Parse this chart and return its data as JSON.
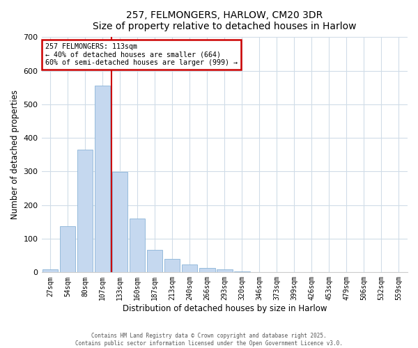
{
  "title": "257, FELMONGERS, HARLOW, CM20 3DR",
  "subtitle": "Size of property relative to detached houses in Harlow",
  "xlabel": "Distribution of detached houses by size in Harlow",
  "ylabel": "Number of detached properties",
  "bar_labels": [
    "27sqm",
    "54sqm",
    "80sqm",
    "107sqm",
    "133sqm",
    "160sqm",
    "187sqm",
    "213sqm",
    "240sqm",
    "266sqm",
    "293sqm",
    "320sqm",
    "346sqm",
    "373sqm",
    "399sqm",
    "426sqm",
    "453sqm",
    "479sqm",
    "506sqm",
    "532sqm",
    "559sqm"
  ],
  "bar_values": [
    10,
    138,
    365,
    555,
    298,
    161,
    66,
    40,
    23,
    13,
    8,
    2,
    0,
    0,
    0,
    0,
    0,
    0,
    0,
    0,
    0
  ],
  "bar_color": "#c5d8ef",
  "bar_edge_color": "#8ab4d8",
  "vline_x": 3.5,
  "vline_color": "#cc0000",
  "annotation_line1": "257 FELMONGERS: 113sqm",
  "annotation_line2": "← 40% of detached houses are smaller (664)",
  "annotation_line3": "60% of semi-detached houses are larger (999) →",
  "annotation_box_color": "#cc0000",
  "ylim": [
    0,
    700
  ],
  "yticks": [
    0,
    100,
    200,
    300,
    400,
    500,
    600,
    700
  ],
  "footer1": "Contains HM Land Registry data © Crown copyright and database right 2025.",
  "footer2": "Contains public sector information licensed under the Open Government Licence v3.0.",
  "bg_color": "#ffffff",
  "plot_bg_color": "#ffffff"
}
